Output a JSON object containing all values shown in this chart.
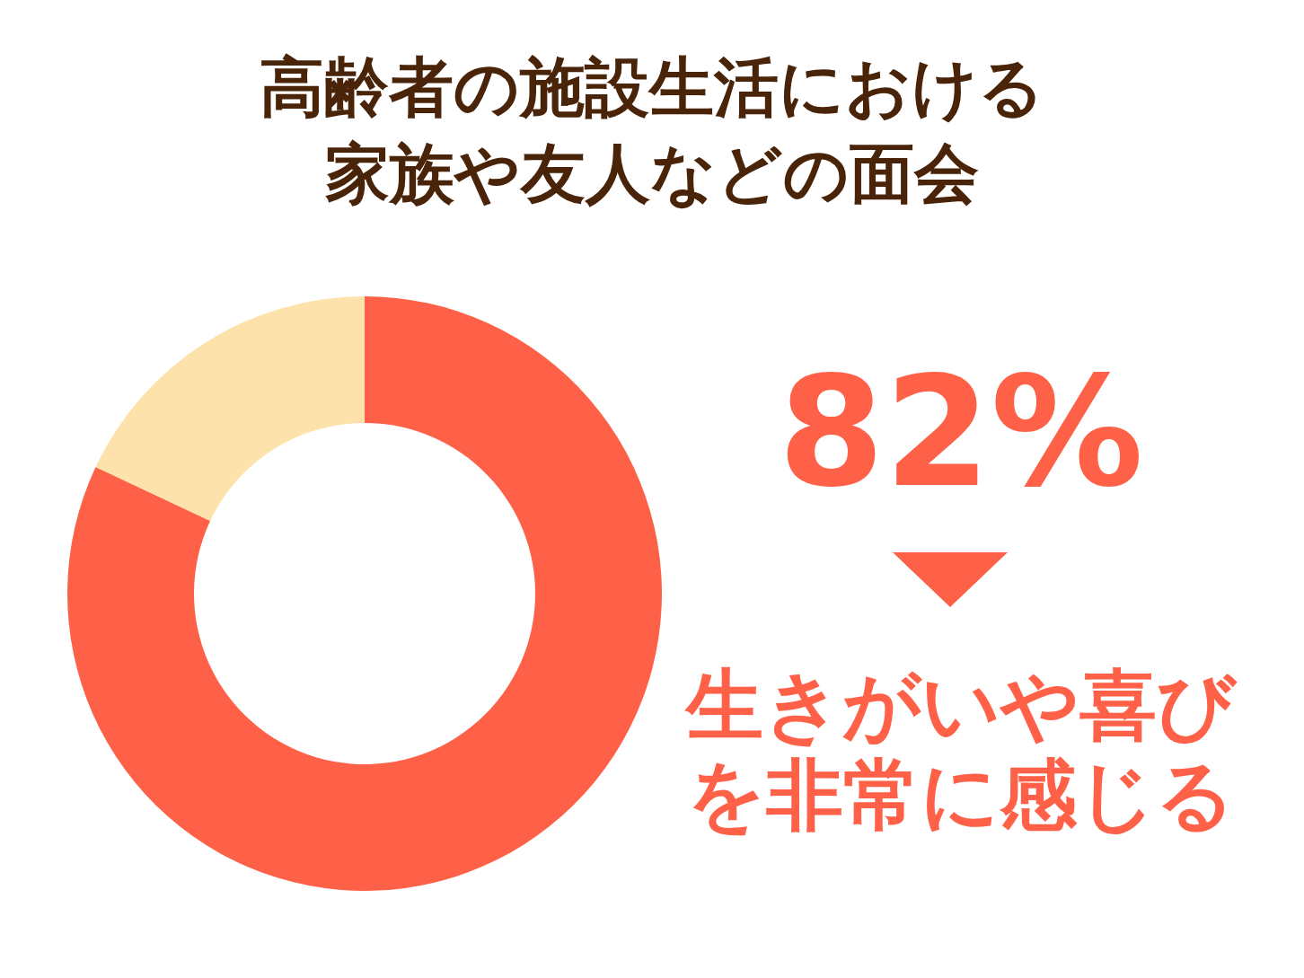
{
  "chart_data": {
    "type": "donut",
    "title": "高齢者の施設生活における家族や友人などの面会",
    "categories": [
      "生きがいや喜びを非常に感じる",
      null
    ],
    "values": [
      82,
      18
    ],
    "colors": [
      "#ff6148",
      "#fee2ab"
    ],
    "value_labels": [
      "82%",
      null
    ]
  }
}
